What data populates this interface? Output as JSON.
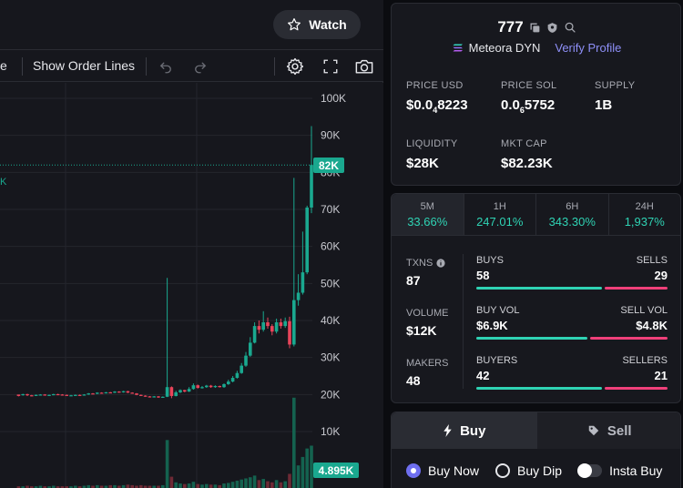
{
  "chart_toolbar": {
    "watch_label": "Watch",
    "partial_label": "e",
    "order_lines_label": "Show Order Lines",
    "icons": [
      "undo-icon",
      "redo-icon",
      "gear-icon",
      "fullscreen-icon",
      "camera-icon"
    ]
  },
  "chart_data": {
    "type": "candlestick",
    "y_ticks": [
      "100K",
      "90K",
      "80K",
      "70K",
      "60K",
      "50K",
      "40K",
      "30K",
      "20K",
      "10K"
    ],
    "y_tick_values": [
      100000,
      90000,
      80000,
      70000,
      60000,
      50000,
      40000,
      30000,
      20000,
      10000
    ],
    "ylim": [
      0,
      105000
    ],
    "current_price_label": "82K",
    "current_price_value": 82000,
    "volume_label": "4.895K",
    "left_edge_label": "K",
    "colors": {
      "up": "#1aa88f",
      "down": "#e8445a",
      "price_line": "#1aa88f"
    },
    "candles": [
      [
        20,
        20,
        19.6,
        19.5,
        19.9
      ],
      [
        21,
        19.9,
        20.1,
        19.7,
        20.2
      ],
      [
        22,
        20.1,
        19.8,
        19.6,
        20.2
      ],
      [
        23,
        19.8,
        19.7,
        19.5,
        19.9
      ],
      [
        24,
        19.7,
        19.9,
        19.6,
        20.0
      ],
      [
        25,
        19.9,
        20.0,
        19.8,
        20.1
      ],
      [
        26,
        20.0,
        19.8,
        19.7,
        20.1
      ],
      [
        27,
        19.8,
        19.9,
        19.7,
        20.0
      ],
      [
        28,
        19.9,
        20.1,
        19.8,
        20.2
      ],
      [
        29,
        20.1,
        20.0,
        19.9,
        20.2
      ],
      [
        30,
        20.0,
        19.9,
        19.8,
        20.1
      ],
      [
        31,
        19.9,
        19.7,
        19.6,
        20.0
      ],
      [
        32,
        19.7,
        19.8,
        19.6,
        19.9
      ],
      [
        33,
        19.8,
        19.9,
        19.7,
        20.0
      ],
      [
        34,
        19.9,
        19.8,
        19.7,
        20.0
      ],
      [
        35,
        19.8,
        20.0,
        19.7,
        20.1
      ],
      [
        36,
        20.0,
        20.3,
        19.9,
        20.4
      ],
      [
        37,
        20.3,
        20.2,
        20.1,
        20.4
      ],
      [
        38,
        20.2,
        20.5,
        20.1,
        20.6
      ],
      [
        39,
        20.5,
        20.4,
        20.3,
        20.6
      ],
      [
        40,
        20.4,
        20.6,
        20.3,
        20.7
      ],
      [
        41,
        20.6,
        20.5,
        20.4,
        20.7
      ],
      [
        42,
        20.5,
        20.8,
        20.4,
        20.9
      ],
      [
        43,
        20.8,
        20.6,
        20.5,
        20.9
      ],
      [
        44,
        20.6,
        20.9,
        20.5,
        21.0
      ],
      [
        45,
        20.9,
        20.5,
        20.4,
        21.0
      ],
      [
        46,
        20.5,
        20.3,
        20.2,
        20.6
      ],
      [
        47,
        20.3,
        19.9,
        19.8,
        20.4
      ],
      [
        48,
        19.9,
        19.7,
        19.6,
        20.0
      ],
      [
        49,
        19.7,
        19.5,
        19.4,
        19.8
      ],
      [
        50,
        19.5,
        19.3,
        19.2,
        19.6
      ],
      [
        51,
        19.3,
        19.5,
        19.2,
        19.6
      ],
      [
        52,
        19.5,
        19.2,
        19.1,
        19.6
      ],
      [
        53,
        19.2,
        19.4,
        19.1,
        19.5
      ],
      [
        54,
        19.4,
        22.0,
        19.3,
        51.5
      ],
      [
        55,
        22.0,
        19.6,
        19.0,
        22.2
      ],
      [
        56,
        19.6,
        20.6,
        19.5,
        21.0
      ],
      [
        57,
        20.6,
        21.2,
        20.4,
        21.4
      ],
      [
        58,
        21.2,
        20.8,
        20.6,
        21.3
      ],
      [
        59,
        20.8,
        21.5,
        20.7,
        22.0
      ],
      [
        60,
        21.5,
        22.5,
        21.3,
        23.0
      ],
      [
        61,
        22.5,
        21.8,
        21.6,
        22.7
      ],
      [
        62,
        21.8,
        22.0,
        21.6,
        22.3
      ],
      [
        63,
        22.0,
        22.4,
        21.8,
        22.6
      ],
      [
        64,
        22.4,
        22.0,
        21.8,
        22.6
      ],
      [
        65,
        22.0,
        22.3,
        21.8,
        22.5
      ],
      [
        66,
        22.3,
        22.0,
        21.9,
        22.4
      ],
      [
        67,
        22.0,
        22.8,
        21.8,
        23.0
      ],
      [
        68,
        22.8,
        23.5,
        22.6,
        24.0
      ],
      [
        69,
        23.5,
        24.5,
        23.3,
        25.0
      ],
      [
        70,
        24.5,
        25.8,
        24.3,
        26.4
      ],
      [
        71,
        25.8,
        27.8,
        25.6,
        28.5
      ],
      [
        72,
        27.8,
        30.5,
        27.5,
        31.5
      ],
      [
        73,
        30.5,
        34.0,
        30.2,
        35.5
      ],
      [
        74,
        34.0,
        38.5,
        33.8,
        39.5
      ],
      [
        75,
        38.5,
        37.5,
        36.5,
        40.0
      ],
      [
        76,
        37.5,
        39.5,
        37.0,
        42.5
      ],
      [
        77,
        39.5,
        38.5,
        37.8,
        40.8
      ],
      [
        78,
        38.5,
        37.0,
        36.0,
        39.0
      ],
      [
        79,
        37.0,
        39.5,
        36.5,
        40.5
      ],
      [
        80,
        39.5,
        38.5,
        37.8,
        40.5
      ],
      [
        81,
        38.5,
        39.8,
        38.0,
        40.8
      ],
      [
        82,
        39.8,
        33.5,
        32.5,
        41.0
      ],
      [
        83,
        33.5,
        45.5,
        33.0,
        78.5
      ],
      [
        84,
        45.5,
        47.5,
        44.0,
        52.5
      ],
      [
        85,
        47.5,
        53.0,
        47.0,
        64.0
      ],
      [
        86,
        53.0,
        70.5,
        52.5,
        71.0
      ],
      [
        87,
        70.5,
        82.0,
        69.0,
        92.5
      ]
    ],
    "volumes": [
      0.3,
      0.3,
      0.4,
      0.3,
      0.3,
      0.4,
      0.3,
      0.3,
      0.4,
      0.3,
      0.3,
      0.3,
      0.3,
      0.4,
      0.3,
      0.4,
      0.5,
      0.4,
      0.5,
      0.4,
      0.4,
      0.5,
      0.5,
      0.4,
      0.5,
      0.6,
      0.5,
      0.4,
      0.5,
      0.4,
      0.4,
      0.4,
      0.4,
      0.5,
      8.5,
      2.0,
      1.0,
      0.8,
      0.7,
      0.8,
      1.1,
      0.7,
      0.6,
      0.7,
      0.6,
      0.6,
      0.5,
      0.8,
      0.9,
      1.1,
      1.3,
      1.5,
      1.7,
      1.9,
      2.2,
      1.4,
      1.6,
      1.2,
      1.0,
      1.4,
      1.0,
      1.2,
      2.5,
      16.0,
      4.0,
      5.5,
      7.0,
      7.5
    ]
  },
  "token": {
    "name": "777",
    "dex": "Meteora DYN",
    "verify_label": "Verify Profile",
    "stats": [
      {
        "label": "PRICE USD",
        "value_pre": "$0.0",
        "value_sub": "4",
        "value_post": "8223"
      },
      {
        "label": "PRICE SOL",
        "value_pre": "0.0",
        "value_sub": "6",
        "value_post": "5752"
      },
      {
        "label": "SUPPLY",
        "value_pre": "1B",
        "value_sub": "",
        "value_post": ""
      },
      {
        "label": "LIQUIDITY",
        "value_pre": "$28K",
        "value_sub": "",
        "value_post": ""
      },
      {
        "label": "MKT CAP",
        "value_pre": "$82.23K",
        "value_sub": "",
        "value_post": ""
      }
    ]
  },
  "timeframes": [
    {
      "label": "5M",
      "value": "33.66%"
    },
    {
      "label": "1H",
      "value": "247.01%"
    },
    {
      "label": "6H",
      "value": "343.30%"
    },
    {
      "label": "24H",
      "value": "1,937%"
    }
  ],
  "metrics": {
    "txns": {
      "label": "TXNS",
      "value": "87"
    },
    "volume": {
      "label": "VOLUME",
      "value": "$12K"
    },
    "makers": {
      "label": "MAKERS",
      "value": "48"
    }
  },
  "splits": [
    {
      "left_label": "BUYS",
      "left_value": "58",
      "right_label": "SELLS",
      "right_value": "29",
      "ratio": 0.667
    },
    {
      "left_label": "BUY VOL",
      "left_value": "$6.9K",
      "right_label": "SELL VOL",
      "right_value": "$4.8K",
      "ratio": 0.59
    },
    {
      "left_label": "BUYERS",
      "left_value": "42",
      "right_label": "SELLERS",
      "right_value": "21",
      "ratio": 0.667
    }
  ],
  "trade": {
    "buy_tab": "Buy",
    "sell_tab": "Sell",
    "options": [
      "Buy Now",
      "Buy Dip",
      "Insta Buy"
    ]
  }
}
